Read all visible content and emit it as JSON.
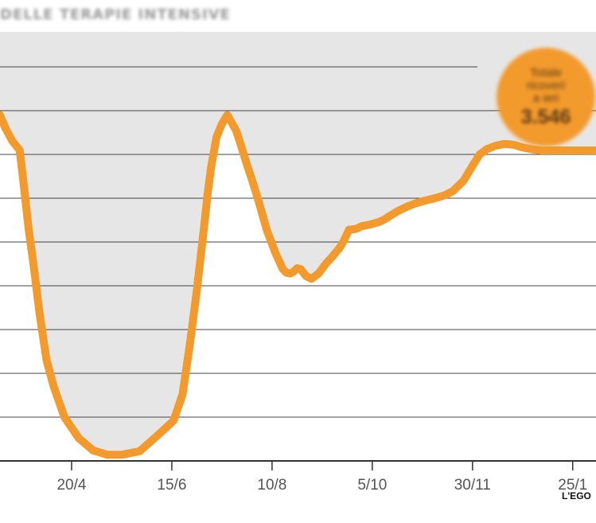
{
  "header": {
    "title": "DELLE TERAPIE INTENSIVE"
  },
  "badge": {
    "line1": "Totale",
    "line2": "ricoveri",
    "line3": "a ieri",
    "value": "3.546"
  },
  "credit": "L'EGO",
  "colors": {
    "line": "#f39a2c",
    "plot_background": "#e6e6e6",
    "grid": "#444444"
  },
  "chart_data": {
    "type": "line",
    "title": "DELLE TERAPIE INTENSIVE",
    "xlabel": "",
    "ylabel": "",
    "tick_labels": [
      "20/4",
      "15/6",
      "10/8",
      "5/10",
      "30/11",
      "25/1"
    ],
    "tick_positions": [
      48,
      104,
      160,
      216,
      272,
      328
    ],
    "x_unit": "days since 2 March 2020",
    "xlim": [
      8,
      341
    ],
    "ylim": [
      0,
      4500
    ],
    "grid": true,
    "series": [
      {
        "name": "",
        "x": [
          8,
          11,
          15,
          17,
          19,
          21,
          24,
          27,
          30,
          34,
          38,
          44,
          52,
          60,
          68,
          76,
          86,
          96,
          105,
          110,
          114,
          118,
          122,
          124,
          126,
          129,
          132,
          135,
          140,
          143,
          146,
          148,
          152,
          157,
          162,
          166,
          168,
          170,
          172,
          174,
          176,
          179,
          182,
          186,
          190,
          194,
          198,
          200,
          203,
          207,
          210,
          215,
          220,
          223,
          226,
          230,
          235,
          240,
          245,
          251,
          256,
          261,
          267,
          272,
          276,
          280,
          285,
          290,
          295,
          300,
          305,
          310,
          316,
          322,
          327,
          332,
          337,
          341
        ],
        "y": [
          3950,
          3800,
          3650,
          3600,
          3550,
          3200,
          2650,
          2200,
          1700,
          1150,
          850,
          500,
          260,
          120,
          70,
          70,
          110,
          290,
          460,
          760,
          1320,
          1950,
          2670,
          3050,
          3360,
          3700,
          3850,
          3950,
          3770,
          3580,
          3380,
          3260,
          3000,
          2640,
          2370,
          2190,
          2150,
          2140,
          2160,
          2200,
          2190,
          2110,
          2080,
          2140,
          2250,
          2340,
          2440,
          2510,
          2640,
          2650,
          2680,
          2700,
          2730,
          2760,
          2800,
          2850,
          2900,
          2940,
          2970,
          3000,
          3030,
          3080,
          3200,
          3370,
          3500,
          3560,
          3600,
          3620,
          3610,
          3580,
          3560,
          3546,
          3546,
          3546,
          3546,
          3546,
          3546,
          3546
        ]
      }
    ]
  }
}
